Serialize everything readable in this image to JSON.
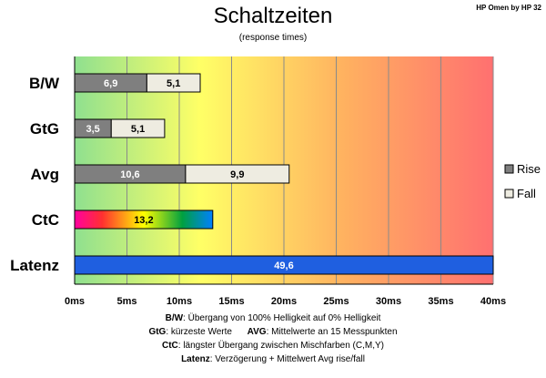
{
  "chart_data": {
    "type": "bar",
    "title": "Schaltzeiten",
    "subtitle": "(response times)",
    "corner_label": "HP Omen by HP 32",
    "categories": [
      "B/W",
      "GtG",
      "Avg",
      "CtC",
      "Latenz"
    ],
    "series": [
      {
        "name": "Rise",
        "values": [
          6.9,
          3.5,
          10.6,
          null,
          null
        ],
        "color": "#7f7f7f"
      },
      {
        "name": "Fall",
        "values": [
          5.1,
          5.1,
          9.9,
          null,
          null
        ],
        "color": "#eeece1"
      }
    ],
    "ctc_value": 13.2,
    "latenz_value": 49.6,
    "data_labels": {
      "rise": [
        "6,9",
        "3,5",
        "10,6",
        "",
        ""
      ],
      "fall": [
        "5,1",
        "5,1",
        "9,9",
        "",
        ""
      ],
      "ctc": "13,2",
      "latenz": "49,6"
    },
    "ctc_gradient": [
      "#ff00a0",
      "#ff3030",
      "#ffff00",
      "#00a040",
      "#0080ff"
    ],
    "latenz_color": "#1f5fe0",
    "background_gradient": [
      "#8fe08f",
      "#ffff66",
      "#ffb060",
      "#ff7070"
    ],
    "xlim": [
      0,
      40
    ],
    "xticks": [
      "0ms",
      "5ms",
      "10ms",
      "15ms",
      "20ms",
      "25ms",
      "30ms",
      "35ms",
      "40ms"
    ],
    "grid": true,
    "legend_position": "right"
  },
  "notes": [
    {
      "label": "B/W",
      "text": ":  Übergang von 100% Helligkeit auf 0% Helligkeit"
    },
    {
      "label": "GtG",
      "text": ": kürzeste  Werte",
      "label2": "AVG",
      "text2": ": Mittelwerte  an 15 Messpunkten"
    },
    {
      "label": "CtC",
      "text": ": längster Übergang  zwischen Mischfarben (C,M,Y)"
    },
    {
      "label": "Latenz",
      "text": ": Verzögerung  + Mittelwert Avg rise/fall"
    }
  ]
}
